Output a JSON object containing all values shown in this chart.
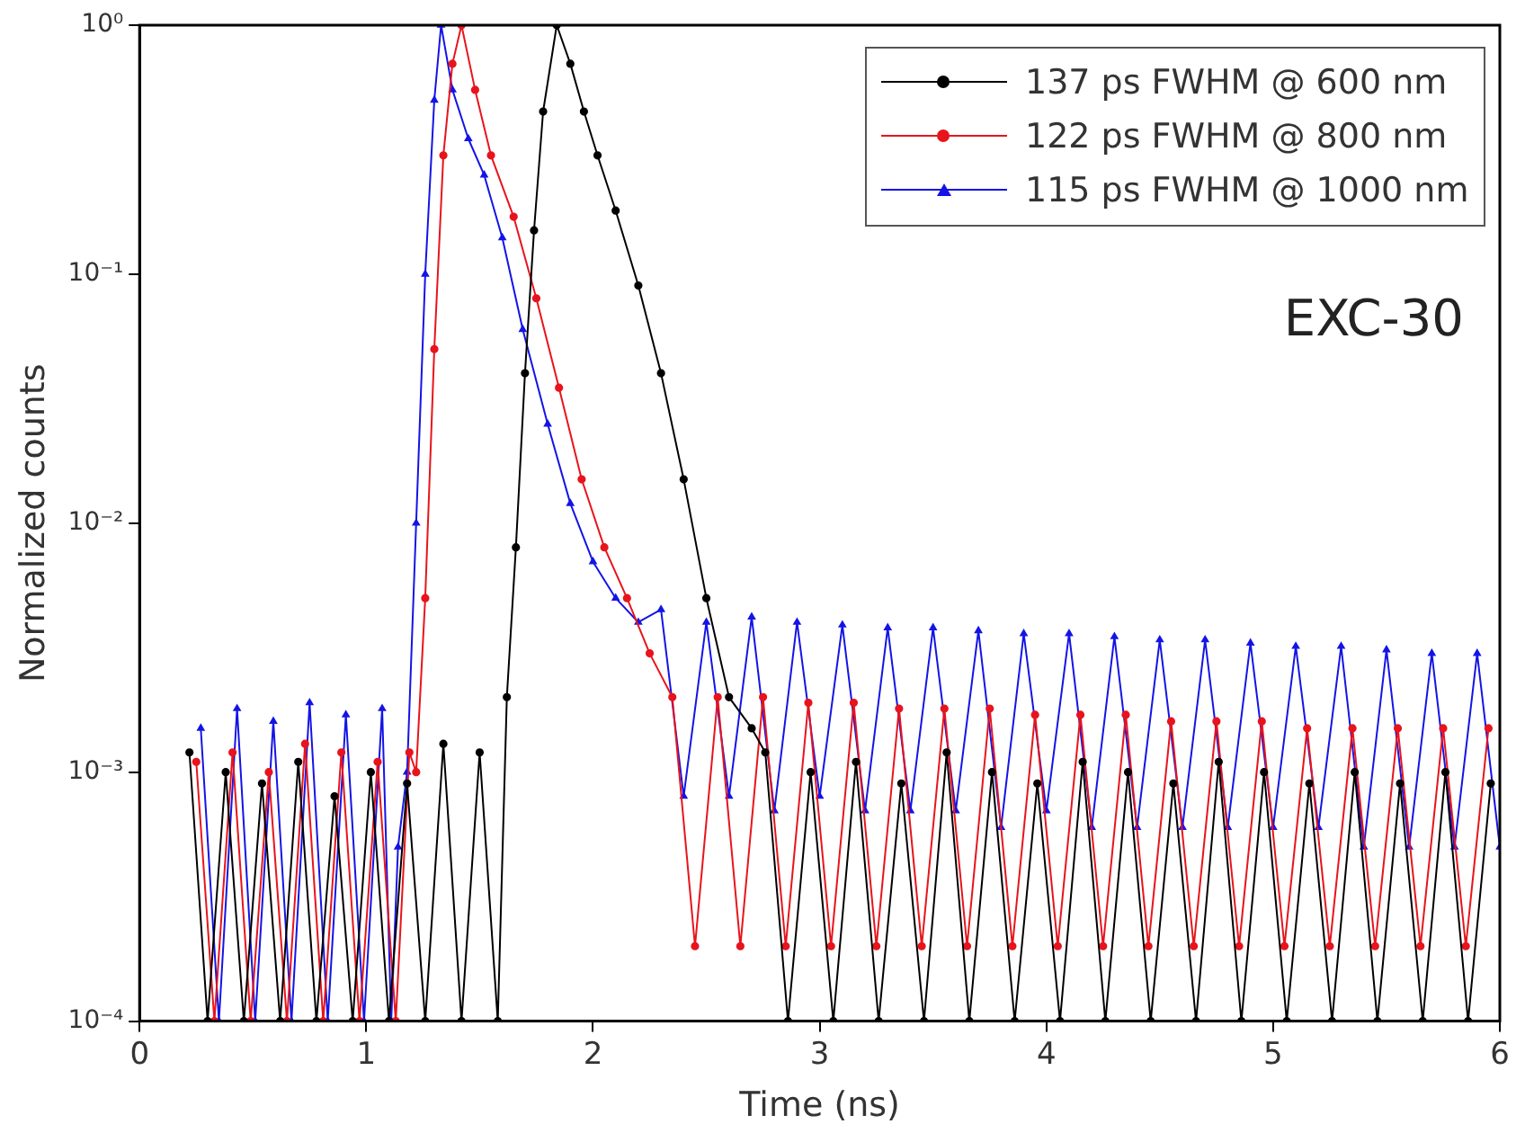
{
  "chart_data": {
    "type": "line",
    "xlabel": "Time (ns)",
    "ylabel": "Normalized counts",
    "log": "y",
    "xlim": [
      0,
      6
    ],
    "xticks": [
      0,
      1,
      2,
      3,
      4,
      5,
      6
    ],
    "ylim": [
      0.0001,
      1
    ],
    "yticks": [
      {
        "value": 0.0001,
        "label": "10⁻⁴"
      },
      {
        "value": 0.001,
        "label": "10⁻³"
      },
      {
        "value": 0.01,
        "label": "10⁻²"
      },
      {
        "value": 0.1,
        "label": "10⁻¹"
      },
      {
        "value": 1,
        "label": "10⁰"
      }
    ],
    "grid": false,
    "legend": "top right",
    "annotations": [
      "EXC-30"
    ],
    "series": [
      {
        "name": "137 ps FWHM @ 600 nm",
        "color": "#000000",
        "marker": "circle",
        "x": [
          0.22,
          0.3,
          0.38,
          0.46,
          0.54,
          0.62,
          0.7,
          0.78,
          0.86,
          0.94,
          1.02,
          1.1,
          1.18,
          1.26,
          1.34,
          1.42,
          1.5,
          1.58,
          1.62,
          1.66,
          1.7,
          1.74,
          1.78,
          1.84,
          1.9,
          1.96,
          2.02,
          2.1,
          2.2,
          2.3,
          2.4,
          2.5,
          2.6,
          2.7,
          2.76,
          2.86,
          2.96,
          3.06,
          3.16,
          3.26,
          3.36,
          3.46,
          3.56,
          3.66,
          3.76,
          3.86,
          3.96,
          4.06,
          4.16,
          4.26,
          4.36,
          4.46,
          4.56,
          4.66,
          4.76,
          4.86,
          4.96,
          5.06,
          5.16,
          5.26,
          5.36,
          5.46,
          5.56,
          5.66,
          5.76,
          5.86,
          5.96
        ],
        "values": [
          0.0012,
          0.0001,
          0.001,
          0.0001,
          0.0009,
          0.0001,
          0.0011,
          0.0001,
          0.0008,
          0.0001,
          0.001,
          0.0001,
          0.0009,
          0.0001,
          0.0013,
          0.0001,
          0.0012,
          0.0001,
          0.002,
          0.008,
          0.04,
          0.15,
          0.45,
          1,
          0.7,
          0.45,
          0.3,
          0.18,
          0.09,
          0.04,
          0.015,
          0.005,
          0.002,
          0.0015,
          0.0012,
          0.0001,
          0.001,
          0.0001,
          0.0011,
          0.0001,
          0.0009,
          0.0001,
          0.0012,
          0.0001,
          0.001,
          0.0001,
          0.0009,
          0.0001,
          0.0011,
          0.0001,
          0.001,
          0.0001,
          0.0009,
          0.0001,
          0.0011,
          0.0001,
          0.001,
          0.0001,
          0.0009,
          0.0001,
          0.001,
          0.0001,
          0.0009,
          0.0001,
          0.001,
          0.0001,
          0.0009
        ]
      },
      {
        "name": "122 ps FWHM @ 800 nm",
        "color": "#e8141c",
        "marker": "circle",
        "x": [
          0.25,
          0.33,
          0.41,
          0.49,
          0.57,
          0.65,
          0.73,
          0.81,
          0.89,
          0.97,
          1.05,
          1.13,
          1.19,
          1.22,
          1.26,
          1.3,
          1.34,
          1.38,
          1.42,
          1.48,
          1.55,
          1.65,
          1.75,
          1.85,
          1.95,
          2.05,
          2.15,
          2.25,
          2.35,
          2.45,
          2.55,
          2.65,
          2.75,
          2.85,
          2.95,
          3.05,
          3.15,
          3.25,
          3.35,
          3.45,
          3.55,
          3.65,
          3.75,
          3.85,
          3.95,
          4.05,
          4.15,
          4.25,
          4.35,
          4.45,
          4.55,
          4.65,
          4.75,
          4.85,
          4.95,
          5.05,
          5.15,
          5.25,
          5.35,
          5.45,
          5.55,
          5.65,
          5.75,
          5.85,
          5.95
        ],
        "values": [
          0.0011,
          0.0001,
          0.0012,
          0.0001,
          0.001,
          0.0001,
          0.0013,
          0.0001,
          0.0012,
          0.0001,
          0.0011,
          0.0001,
          0.0012,
          0.001,
          0.005,
          0.05,
          0.3,
          0.7,
          1,
          0.55,
          0.3,
          0.17,
          0.08,
          0.035,
          0.015,
          0.008,
          0.005,
          0.003,
          0.002,
          0.0002,
          0.002,
          0.0002,
          0.002,
          0.0002,
          0.0019,
          0.0002,
          0.0019,
          0.0002,
          0.0018,
          0.0002,
          0.0018,
          0.0002,
          0.0018,
          0.0002,
          0.0017,
          0.0002,
          0.0017,
          0.0002,
          0.0017,
          0.0002,
          0.0016,
          0.0002,
          0.0016,
          0.0002,
          0.0016,
          0.0002,
          0.0015,
          0.0002,
          0.0015,
          0.0002,
          0.0015,
          0.0002,
          0.0015,
          0.0002,
          0.0015
        ]
      },
      {
        "name": "115 ps FWHM @ 1000 nm",
        "color": "#1414e6",
        "marker": "triangle",
        "x": [
          0.27,
          0.35,
          0.43,
          0.51,
          0.59,
          0.67,
          0.75,
          0.83,
          0.91,
          0.99,
          1.07,
          1.11,
          1.14,
          1.18,
          1.22,
          1.26,
          1.3,
          1.33,
          1.38,
          1.45,
          1.52,
          1.6,
          1.69,
          1.8,
          1.9,
          2.0,
          2.1,
          2.2,
          2.3,
          2.4,
          2.5,
          2.6,
          2.7,
          2.8,
          2.9,
          3.0,
          3.1,
          3.2,
          3.3,
          3.4,
          3.5,
          3.6,
          3.7,
          3.8,
          3.9,
          4.0,
          4.1,
          4.2,
          4.3,
          4.4,
          4.5,
          4.6,
          4.7,
          4.8,
          4.9,
          5.0,
          5.1,
          5.2,
          5.3,
          5.4,
          5.5,
          5.6,
          5.7,
          5.8,
          5.9,
          6.0
        ],
        "values": [
          0.0015,
          0.0001,
          0.0018,
          0.0001,
          0.0016,
          0.0001,
          0.0019,
          0.0001,
          0.0017,
          0.0001,
          0.0018,
          0.0001,
          0.0005,
          0.001,
          0.01,
          0.1,
          0.5,
          1,
          0.55,
          0.35,
          0.25,
          0.14,
          0.06,
          0.025,
          0.012,
          0.007,
          0.005,
          0.004,
          0.0045,
          0.0008,
          0.004,
          0.0008,
          0.0042,
          0.0007,
          0.004,
          0.0008,
          0.0039,
          0.0007,
          0.0038,
          0.0007,
          0.0038,
          0.0007,
          0.0037,
          0.0006,
          0.0036,
          0.0007,
          0.0036,
          0.0006,
          0.0035,
          0.0006,
          0.0034,
          0.0006,
          0.0034,
          0.0006,
          0.0033,
          0.0006,
          0.0032,
          0.0006,
          0.0032,
          0.0005,
          0.0031,
          0.0005,
          0.003,
          0.0005,
          0.003,
          0.0005
        ]
      }
    ]
  }
}
